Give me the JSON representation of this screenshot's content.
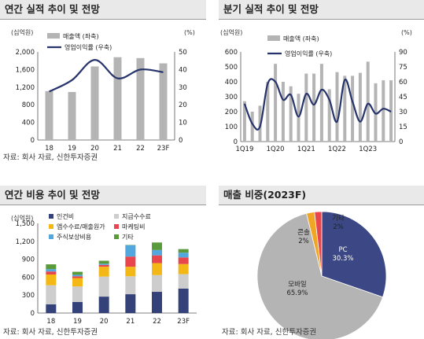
{
  "panels": {
    "p1": {
      "title": "연간 실적 추이 및 전망",
      "source": "자료: 회사 자료, 신한투자증권"
    },
    "p2": {
      "title": "분기 실적 추이 및 전망",
      "source": ""
    },
    "p3": {
      "title": "연간 비용 추이 및 전망",
      "source": "자료: 회사 자료, 신한투자증권"
    },
    "p4": {
      "title": "매출 비중(2023F)",
      "source": "자료: 회사 자료, 신한투자증권"
    }
  },
  "colors": {
    "bar_gray": "#b4b4b4",
    "line_navy": "#26346b",
    "labor": "#35427a",
    "payment_fee": "#cdcdcd",
    "business_fee": "#f3b816",
    "marketing": "#e8464c",
    "stock_comp": "#53a7df",
    "other": "#5a9a3b",
    "pc": "#3b4885",
    "mobile": "#b4b4b4",
    "console": "#f0a525",
    "etc": "#e8464c"
  },
  "chart_data": [
    {
      "id": "annual",
      "type": "bar",
      "title": "연간 실적 추이 및 전망",
      "categories": [
        "18",
        "19",
        "20",
        "21",
        "22",
        "23F"
      ],
      "left_unit": "(십억원)",
      "right_unit": "(%)",
      "ylim": [
        0,
        2000
      ],
      "y_ticks": [
        "0",
        "400",
        "800",
        "1,200",
        "1,600",
        "2,000"
      ],
      "y2lim": [
        0,
        50
      ],
      "y2_ticks": [
        "0",
        "10",
        "20",
        "30",
        "40",
        "50"
      ],
      "series": [
        {
          "name": "매출액 (좌축)",
          "type": "bar",
          "axis": "left",
          "values": [
            1110,
            1090,
            1670,
            1880,
            1860,
            1740
          ]
        },
        {
          "name": "영업이익률 (우축)",
          "type": "line",
          "axis": "right",
          "values": [
            27.5,
            34,
            45.5,
            35,
            40,
            38.5
          ]
        }
      ]
    },
    {
      "id": "quarterly",
      "type": "bar",
      "title": "분기 실적 추이 및 전망",
      "categories": [
        "1Q19",
        "2Q19",
        "3Q19",
        "4Q19",
        "1Q20",
        "2Q20",
        "3Q20",
        "4Q20",
        "1Q21",
        "2Q21",
        "3Q21",
        "4Q21",
        "1Q22",
        "2Q22",
        "3Q22",
        "4Q22",
        "1Q23",
        "2Q23",
        "3Q23",
        "4Q23"
      ],
      "x_tick_labels": [
        "1Q19",
        "1Q20",
        "1Q21",
        "1Q22",
        "1Q23"
      ],
      "left_unit": "(십억원)",
      "right_unit": "(%)",
      "ylim": [
        0,
        600
      ],
      "y_ticks": [
        "0",
        "100",
        "200",
        "300",
        "400",
        "500",
        "600"
      ],
      "y2lim": [
        0,
        90
      ],
      "y2_ticks": [
        "0",
        "15",
        "30",
        "45",
        "60",
        "75",
        "90"
      ],
      "series": [
        {
          "name": "매출액 (좌축)",
          "type": "bar",
          "axis": "left",
          "values": [
            270,
            200,
            240,
            400,
            520,
            400,
            370,
            320,
            455,
            455,
            520,
            350,
            465,
            440,
            440,
            460,
            535,
            390,
            410,
            410
          ]
        },
        {
          "name": "영업이익률 (우축)",
          "type": "line",
          "axis": "right",
          "values": [
            38,
            18,
            15,
            58,
            60,
            42,
            47,
            25,
            48,
            37,
            52,
            42,
            20,
            62,
            40,
            20,
            38,
            28,
            33,
            30
          ]
        }
      ]
    },
    {
      "id": "costs",
      "type": "bar",
      "stacked": true,
      "title": "연간 비용 추이 및 전망",
      "categories": [
        "18",
        "19",
        "20",
        "21",
        "22",
        "23F"
      ],
      "left_unit": "(십억원)",
      "ylim": [
        0,
        1500
      ],
      "y_ticks": [
        "0",
        "300",
        "600",
        "900",
        "1,200",
        "1,500"
      ],
      "series": [
        {
          "name": "인건비",
          "values": [
            145,
            185,
            275,
            315,
            355,
            410
          ]
        },
        {
          "name": "지급수수료",
          "values": [
            320,
            260,
            335,
            300,
            280,
            240
          ]
        },
        {
          "name": "앱수수료/매출원가",
          "values": [
            180,
            140,
            165,
            160,
            200,
            170
          ]
        },
        {
          "name": "마케팅비",
          "values": [
            50,
            30,
            30,
            170,
            130,
            110
          ]
        },
        {
          "name": "주식보상비용",
          "values": [
            40,
            25,
            20,
            190,
            90,
            80
          ]
        },
        {
          "name": "기타",
          "values": [
            80,
            50,
            50,
            5,
            125,
            60
          ]
        }
      ]
    },
    {
      "id": "mix",
      "type": "pie",
      "title": "매출 비중(2023F)",
      "slices": [
        {
          "label": "PC",
          "value": 30.3,
          "text": "30.3%"
        },
        {
          "label": "모바일",
          "value": 65.9,
          "text": "65.9%"
        },
        {
          "label": "콘솔",
          "value": 2.0,
          "text": "2%"
        },
        {
          "label": "기타",
          "value": 1.8,
          "text": "2%"
        }
      ]
    }
  ]
}
